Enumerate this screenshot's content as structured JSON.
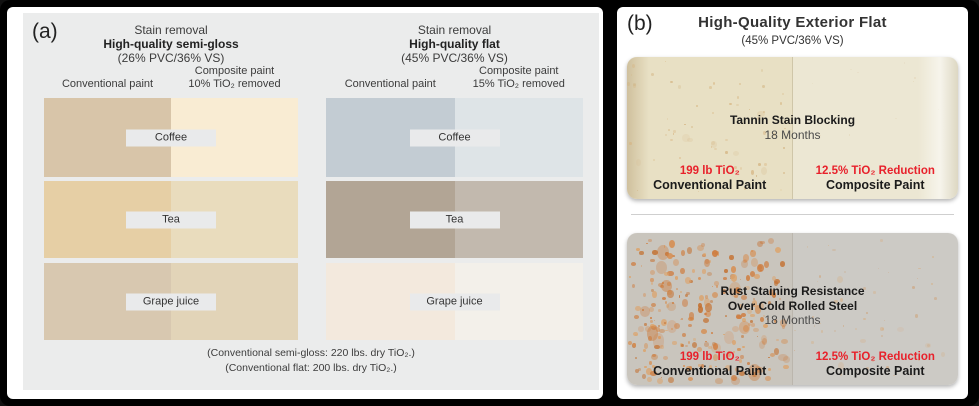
{
  "panel_a": {
    "label": "(a)",
    "background_gray": "#ebecec",
    "chip_bg": "#e9eaeb",
    "groups": [
      {
        "title_line1": "Stain removal",
        "title_line2": "High-quality semi-gloss",
        "title_line3": "(26% PVC/36% VS)",
        "col_left": "Conventional paint",
        "col_right_line1": "Composite paint",
        "col_right_line2": "10% TiO₂ removed",
        "rows": [
          {
            "label": "Coffee",
            "left_color": "#d8c5a9",
            "right_color": "#f9ecd3"
          },
          {
            "label": "Tea",
            "left_color": "#e6cfa5",
            "right_color": "#e9dcbd"
          },
          {
            "label": "Grape juice",
            "left_color": "#d8c8b0",
            "right_color": "#e2d4b8"
          }
        ]
      },
      {
        "title_line1": "Stain removal",
        "title_line2": "High-quality flat",
        "title_line3": "(45% PVC/36% VS)",
        "col_left": "Conventional paint",
        "col_right_line1": "Composite paint",
        "col_right_line2": "15% TiO₂ removed",
        "rows": [
          {
            "label": "Coffee",
            "left_color": "#c3ccd3",
            "right_color": "#dee4e7"
          },
          {
            "label": "Tea",
            "left_color": "#b2a595",
            "right_color": "#c2b9ae"
          },
          {
            "label": "Grape juice",
            "left_color": "#f3e9dd",
            "right_color": "#f3f0ea"
          }
        ]
      }
    ],
    "footnote_line1": "(Conventional semi-gloss: 220 lbs. dry TiO₂.)",
    "footnote_line2": "(Conventional flat: 200 lbs. dry TiO₂.)"
  },
  "panel_b": {
    "label": "(b)",
    "title": "High-Quality Exterior Flat",
    "subtitle": "(45% PVC/36% VS)",
    "accent_red": "#e8212b",
    "photos": [
      {
        "caption_line1": "Tannin Stain Blocking",
        "caption_line2": "18 Months",
        "left_value": "199 lb TiO₂",
        "left_label": "Conventional Paint",
        "right_value": "12.5% TiO₂ Reduction",
        "right_label": "Composite Paint",
        "left_bg": "#e8e0c4",
        "right_bg": "#ece7d3"
      },
      {
        "caption_line1": "Rust Staining Resistance",
        "caption_line2": "Over Cold Rolled Steel",
        "caption_line3": "18 Months",
        "left_value": "199 lb TiO₂",
        "left_label": "Conventional Paint",
        "right_value": "12.5% TiO₂ Reduction",
        "right_label": "Composite Paint",
        "left_bg": "#c9c5bd",
        "right_bg": "#cccac5"
      }
    ]
  }
}
